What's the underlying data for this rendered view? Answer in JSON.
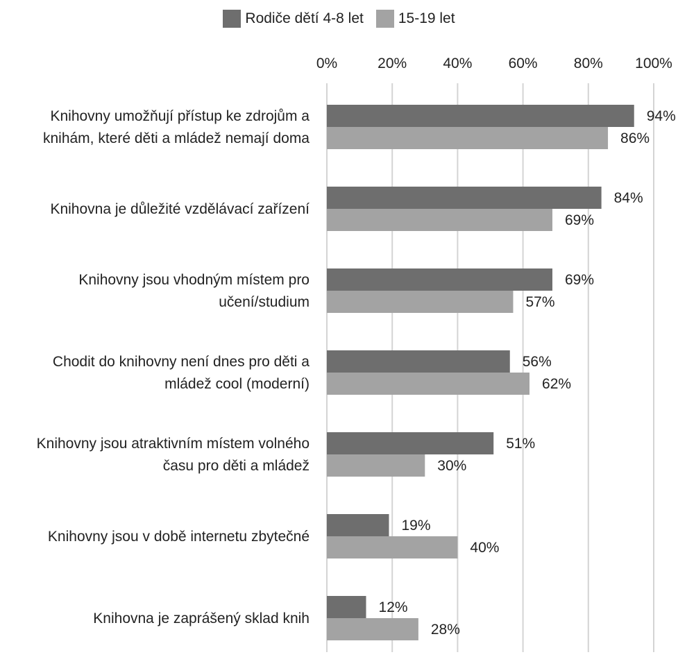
{
  "chart_data": {
    "type": "bar",
    "orientation": "horizontal",
    "categories": [
      [
        "Knihovny umožňují přístup ke zdrojům a",
        "knihám, které děti a mládež nemají doma"
      ],
      [
        "Knihovna je důležité vzdělávací zařízení"
      ],
      [
        "Knihovny jsou vhodným místem pro",
        "učení/studium"
      ],
      [
        "Chodit do knihovny není dnes pro děti a",
        "mládež cool (moderní)"
      ],
      [
        "Knihovny jsou atraktivním místem volného",
        "času pro děti a mládež"
      ],
      [
        "Knihovny jsou v době internetu zbytečné"
      ],
      [
        "Knihovna je zaprášený sklad knih"
      ]
    ],
    "series": [
      {
        "name": "Rodiče dětí 4-8 let",
        "color": "#6e6e6e",
        "values": [
          94,
          84,
          69,
          56,
          51,
          19,
          12
        ],
        "labels": [
          "94%",
          "84%",
          "69%",
          "56%",
          "51%",
          "19%",
          "12%"
        ]
      },
      {
        "name": "15-19 let",
        "color": "#a3a3a3",
        "values": [
          86,
          69,
          57,
          62,
          30,
          40,
          28
        ],
        "labels": [
          "86%",
          "69%",
          "57%",
          "62%",
          "30%",
          "40%",
          "28%"
        ]
      }
    ],
    "xlim": [
      0,
      100
    ],
    "x_ticks": [
      0,
      20,
      40,
      60,
      80,
      100
    ],
    "x_tick_labels": [
      "0%",
      "20%",
      "40%",
      "60%",
      "80%",
      "100%"
    ],
    "x_axis_position": "top",
    "grid": true,
    "legend_position": "top-center"
  }
}
